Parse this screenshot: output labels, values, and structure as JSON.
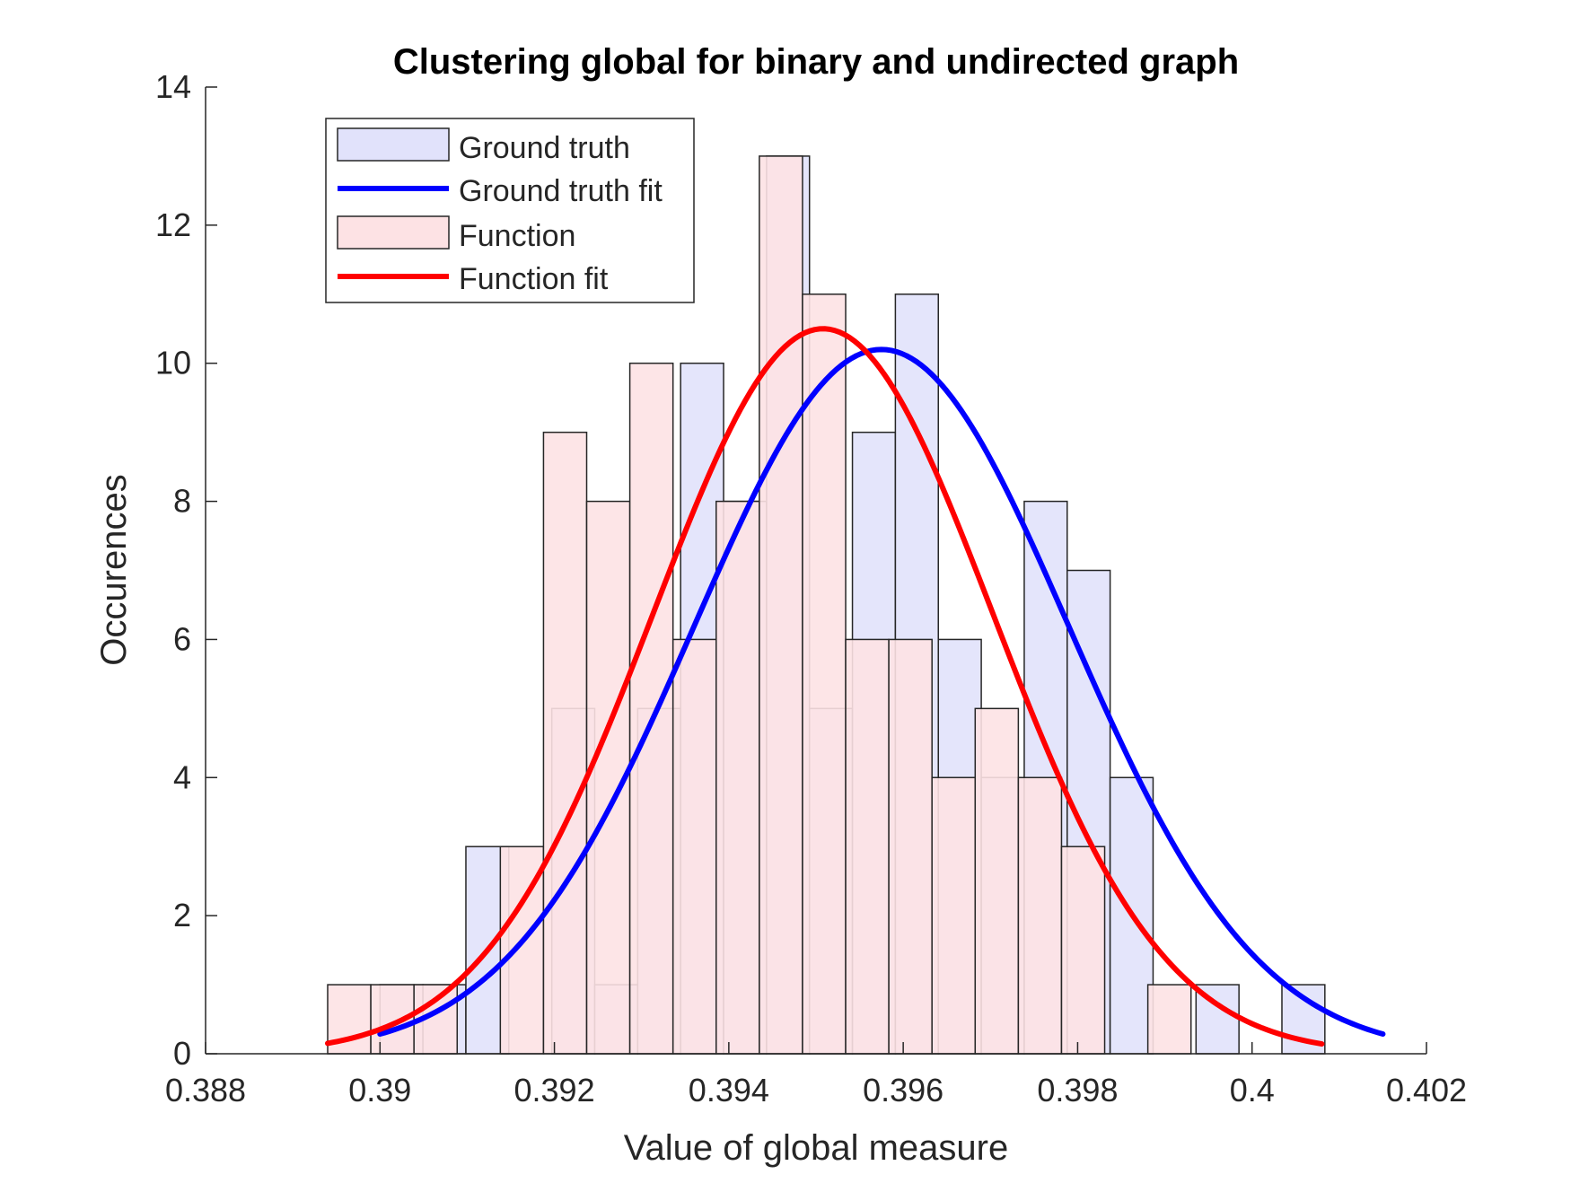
{
  "chart_data": {
    "type": "bar",
    "title": "Clustering global for binary and undirected graph",
    "xlabel": "Value of global measure",
    "ylabel": "Occurences",
    "xlim": [
      0.388,
      0.402
    ],
    "ylim": [
      0,
      14
    ],
    "xticks": [
      0.388,
      0.39,
      0.392,
      0.394,
      0.396,
      0.398,
      0.4,
      0.402
    ],
    "xtick_labels": [
      "0.388",
      "0.39",
      "0.392",
      "0.394",
      "0.396",
      "0.398",
      "0.4",
      "0.402"
    ],
    "yticks": [
      0,
      2,
      4,
      6,
      8,
      10,
      12,
      14
    ],
    "ytick_labels": [
      "0",
      "2",
      "4",
      "6",
      "8",
      "10",
      "12",
      "14"
    ],
    "grid": false,
    "legend_position": "top-left",
    "series": [
      {
        "name": "Ground truth",
        "kind": "histogram",
        "fill": "#e1e2fb",
        "bin_width": 0.0004925,
        "bin_starts": [
          0.39,
          0.3904925,
          0.390985,
          0.3914775,
          0.39197,
          0.3924625,
          0.392955,
          0.3934475,
          0.39394,
          0.3944325,
          0.394925,
          0.3954175,
          0.39591,
          0.3964025,
          0.396895,
          0.3973875,
          0.39788,
          0.3983725,
          0.398865,
          0.3993575,
          0.39985,
          0.4003425
        ],
        "counts": [
          1,
          1,
          3,
          0,
          5,
          1,
          5,
          10,
          8,
          13,
          5,
          9,
          11,
          6,
          4,
          8,
          7,
          4,
          0,
          1,
          0,
          1
        ]
      },
      {
        "name": "Ground truth fit",
        "kind": "normal_fit",
        "color": "#0000ff",
        "mean": 0.39575,
        "peak": 10.2,
        "sigma": 0.00215,
        "x_range": [
          0.39,
          0.4015
        ]
      },
      {
        "name": "Function",
        "kind": "histogram",
        "fill": "#fde2e4",
        "bin_width": 0.000495,
        "bin_starts": [
          0.3894,
          0.389895,
          0.39039,
          0.390885,
          0.39138,
          0.391875,
          0.39237,
          0.392865,
          0.39336,
          0.393855,
          0.39435,
          0.394845,
          0.39534,
          0.395835,
          0.39633,
          0.396825,
          0.39732,
          0.397815,
          0.39831,
          0.398805,
          0.3993,
          0.399795
        ],
        "counts": [
          1,
          1,
          1,
          0,
          3,
          9,
          8,
          10,
          6,
          8,
          13,
          11,
          6,
          6,
          4,
          5,
          4,
          3,
          0,
          1,
          0,
          0
        ]
      },
      {
        "name": "Function fit",
        "kind": "normal_fit",
        "color": "#ff0000",
        "mean": 0.39508,
        "peak": 10.5,
        "sigma": 0.00195,
        "x_range": [
          0.3894,
          0.4008
        ]
      }
    ]
  }
}
